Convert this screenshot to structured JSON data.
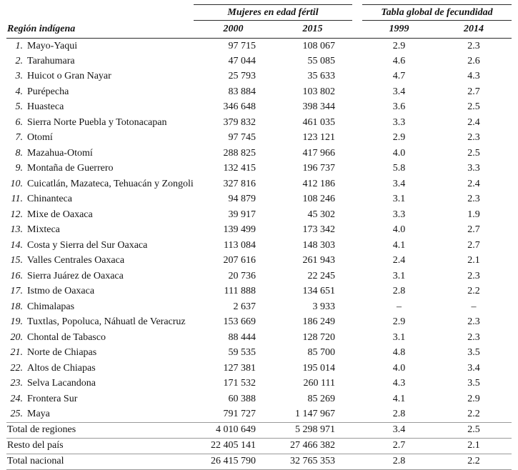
{
  "table": {
    "group_headers": [
      "Mujeres en edad fértil",
      "Tabla global de fecundidad"
    ],
    "region_header": "Región indígena",
    "col_headers": [
      "2000",
      "2015",
      "1999",
      "2014"
    ],
    "rows": [
      {
        "num": "1.",
        "name": "Mayo-Yaqui",
        "w2000": "97 715",
        "w2015": "108 067",
        "f1999": "2.9",
        "f2014": "2.3"
      },
      {
        "num": "2.",
        "name": "Tarahumara",
        "w2000": "47 044",
        "w2015": "55 085",
        "f1999": "4.6",
        "f2014": "2.6"
      },
      {
        "num": "3.",
        "name": "Huicot o Gran Nayar",
        "w2000": "25 793",
        "w2015": "35 633",
        "f1999": "4.7",
        "f2014": "4.3"
      },
      {
        "num": "4.",
        "name": "Purépecha",
        "w2000": "83 884",
        "w2015": "103 802",
        "f1999": "3.4",
        "f2014": "2.7"
      },
      {
        "num": "5.",
        "name": "Huasteca",
        "w2000": "346 648",
        "w2015": "398 344",
        "f1999": "3.6",
        "f2014": "2.5"
      },
      {
        "num": "6.",
        "name": "Sierra Norte Puebla y Totonacapan",
        "w2000": "379 832",
        "w2015": "461 035",
        "f1999": "3.3",
        "f2014": "2.4"
      },
      {
        "num": "7.",
        "name": "Otomí",
        "w2000": "97 745",
        "w2015": "123 121",
        "f1999": "2.9",
        "f2014": "2.3"
      },
      {
        "num": "8.",
        "name": "Mazahua-Otomí",
        "w2000": "288 825",
        "w2015": "417 966",
        "f1999": "4.0",
        "f2014": "2.5"
      },
      {
        "num": "9.",
        "name": "Montaña de Guerrero",
        "w2000": "132 415",
        "w2015": "196 737",
        "f1999": "5.8",
        "f2014": "3.3"
      },
      {
        "num": "10.",
        "name": "Cuicatlán, Mazateca, Tehuacán y Zongolica",
        "w2000": "327 816",
        "w2015": "412 186",
        "f1999": "3.4",
        "f2014": "2.4"
      },
      {
        "num": "11.",
        "name": "Chinanteca",
        "w2000": "94 879",
        "w2015": "108 246",
        "f1999": "3.1",
        "f2014": "2.3"
      },
      {
        "num": "12.",
        "name": "Mixe de Oaxaca",
        "w2000": "39 917",
        "w2015": "45 302",
        "f1999": "3.3",
        "f2014": "1.9"
      },
      {
        "num": "13.",
        "name": "Mixteca",
        "w2000": "139 499",
        "w2015": "173 342",
        "f1999": "4.0",
        "f2014": "2.7"
      },
      {
        "num": "14.",
        "name": "Costa y Sierra del Sur Oaxaca",
        "w2000": "113 084",
        "w2015": "148 303",
        "f1999": "4.1",
        "f2014": "2.7"
      },
      {
        "num": "15.",
        "name": "Valles Centrales Oaxaca",
        "w2000": "207 616",
        "w2015": "261 943",
        "f1999": "2.4",
        "f2014": "2.1"
      },
      {
        "num": "16.",
        "name": "Sierra Juárez de Oaxaca",
        "w2000": "20 736",
        "w2015": "22 245",
        "f1999": "3.1",
        "f2014": "2.3"
      },
      {
        "num": "17.",
        "name": "Istmo de Oaxaca",
        "w2000": "111 888",
        "w2015": "134 651",
        "f1999": "2.8",
        "f2014": "2.2"
      },
      {
        "num": "18.",
        "name": "Chimalapas",
        "w2000": "2 637",
        "w2015": "3 933",
        "f1999": "–",
        "f2014": "–"
      },
      {
        "num": "19.",
        "name": "Tuxtlas, Popoluca, Náhuatl de Veracruz",
        "w2000": "153 669",
        "w2015": "186 249",
        "f1999": "2.9",
        "f2014": "2.3"
      },
      {
        "num": "20.",
        "name": "Chontal de Tabasco",
        "w2000": "88 444",
        "w2015": "128 720",
        "f1999": "3.1",
        "f2014": "2.3"
      },
      {
        "num": "21.",
        "name": "Norte de Chiapas",
        "w2000": "59 535",
        "w2015": "85 700",
        "f1999": "4.8",
        "f2014": "3.5"
      },
      {
        "num": "22.",
        "name": "Altos de Chiapas",
        "w2000": "127 381",
        "w2015": "195 014",
        "f1999": "4.0",
        "f2014": "3.4"
      },
      {
        "num": "23.",
        "name": "Selva Lacandona",
        "w2000": "171 532",
        "w2015": "260 111",
        "f1999": "4.3",
        "f2014": "3.5"
      },
      {
        "num": "24.",
        "name": "Frontera Sur",
        "w2000": "60 388",
        "w2015": "85 269",
        "f1999": "4.1",
        "f2014": "2.9"
      },
      {
        "num": "25.",
        "name": "Maya",
        "w2000": "791 727",
        "w2015": "1 147 967",
        "f1999": "2.8",
        "f2014": "2.2"
      }
    ],
    "totals": [
      {
        "name": "Total de regiones",
        "w2000": "4 010 649",
        "w2015": "5 298 971",
        "f1999": "3.4",
        "f2014": "2.5"
      },
      {
        "name": "Resto del país",
        "w2000": "22 405 141",
        "w2015": "27 466 382",
        "f1999": "2.7",
        "f2014": "2.1"
      },
      {
        "name": "Total nacional",
        "w2000": "26 415 790",
        "w2015": "32 765 353",
        "f1999": "2.8",
        "f2014": "2.2"
      }
    ]
  }
}
